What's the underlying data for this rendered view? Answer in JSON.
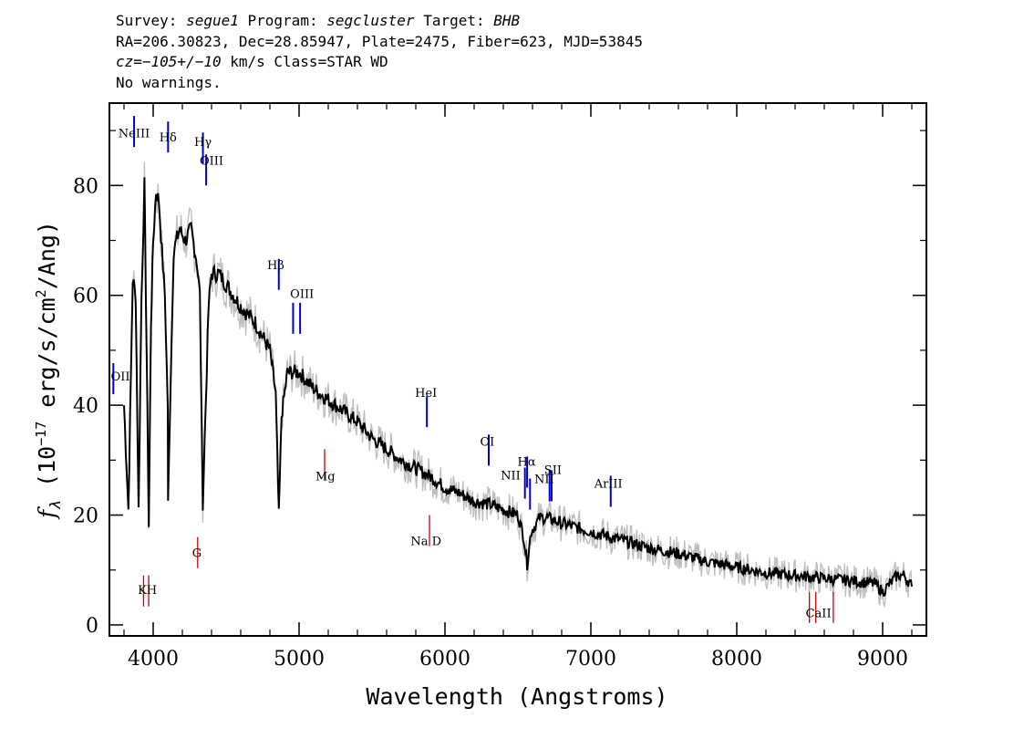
{
  "header": {
    "survey_label": "Survey:",
    "survey": "segue1",
    "program_label": "Program:",
    "program": "segcluster",
    "target_label": "Target:",
    "target": "BHB",
    "line2": "RA=206.30823, Dec=28.85947, Plate=2475, Fiber=623, MJD=53845",
    "cz_label": "cz",
    "cz_value": "=−105+/−10",
    "cz_rest": "km/s Class=STAR WD",
    "line4": "No warnings."
  },
  "chart_data": {
    "type": "line",
    "xlabel": "Wavelength (Angstroms)",
    "ylabel_prefix": "f",
    "ylabel_sub": "λ",
    "ylabel_unit_a": " (10",
    "ylabel_exp": "−17",
    "ylabel_unit_b": " erg/s/cm",
    "ylabel_exp2": "2",
    "ylabel_unit_c": "/Ang)",
    "xlim": [
      3700,
      9300
    ],
    "ylim": [
      -2,
      95
    ],
    "x_ticks": [
      4000,
      5000,
      6000,
      7000,
      8000,
      9000
    ],
    "y_ticks": [
      0,
      20,
      40,
      60,
      80
    ],
    "colors": {
      "spectrum": "#000000",
      "noise": "#bdbdbd",
      "emission": "#0000cc",
      "absorption": "#cc0000"
    },
    "spectrum": [
      [
        3800,
        40
      ],
      [
        3830,
        21
      ],
      [
        3860,
        63
      ],
      [
        3880,
        60
      ],
      [
        3900,
        21
      ],
      [
        3920,
        60
      ],
      [
        3940,
        80
      ],
      [
        3955,
        50
      ],
      [
        3970,
        18
      ],
      [
        3985,
        55
      ],
      [
        4000,
        70
      ],
      [
        4020,
        79
      ],
      [
        4040,
        77
      ],
      [
        4060,
        68
      ],
      [
        4080,
        60
      ],
      [
        4100,
        40
      ],
      [
        4102,
        22
      ],
      [
        4120,
        45
      ],
      [
        4140,
        68
      ],
      [
        4180,
        72
      ],
      [
        4220,
        70
      ],
      [
        4260,
        72
      ],
      [
        4300,
        66
      ],
      [
        4320,
        60
      ],
      [
        4340,
        22
      ],
      [
        4360,
        40
      ],
      [
        4380,
        58
      ],
      [
        4400,
        64
      ],
      [
        4450,
        64
      ],
      [
        4500,
        62
      ],
      [
        4600,
        58
      ],
      [
        4700,
        55
      ],
      [
        4800,
        50
      ],
      [
        4840,
        42
      ],
      [
        4861,
        20
      ],
      [
        4880,
        38
      ],
      [
        4920,
        46
      ],
      [
        5000,
        46
      ],
      [
        5100,
        43
      ],
      [
        5200,
        41
      ],
      [
        5300,
        39
      ],
      [
        5400,
        37
      ],
      [
        5500,
        34
      ],
      [
        5600,
        32
      ],
      [
        5700,
        30
      ],
      [
        5800,
        28.5
      ],
      [
        5900,
        27
      ],
      [
        6000,
        25
      ],
      [
        6100,
        24
      ],
      [
        6200,
        22.5
      ],
      [
        6300,
        22
      ],
      [
        6400,
        21
      ],
      [
        6500,
        20
      ],
      [
        6540,
        16
      ],
      [
        6563,
        11
      ],
      [
        6590,
        17
      ],
      [
        6650,
        19.5
      ],
      [
        6700,
        19.5
      ],
      [
        6800,
        18.5
      ],
      [
        7000,
        17
      ],
      [
        7200,
        15.5
      ],
      [
        7400,
        14
      ],
      [
        7600,
        13
      ],
      [
        7800,
        11.5
      ],
      [
        8000,
        10.5
      ],
      [
        8200,
        9.5
      ],
      [
        8400,
        9
      ],
      [
        8600,
        8.5
      ],
      [
        8800,
        8
      ],
      [
        8950,
        7.5
      ],
      [
        9000,
        6
      ],
      [
        9050,
        7.5
      ],
      [
        9100,
        9
      ],
      [
        9150,
        9
      ],
      [
        9200,
        7
      ]
    ],
    "emission_lines": [
      {
        "label": "OII",
        "wavelength": 3727,
        "y": 42
      },
      {
        "label": "NeIII",
        "wavelength": 3869,
        "y": 87
      },
      {
        "label": "Hδ",
        "wavelength": 4102,
        "y": 86
      },
      {
        "label": "Hγ",
        "wavelength": 4341,
        "y": 84
      },
      {
        "label": "OIII",
        "wavelength": 4363,
        "y": 80
      },
      {
        "label": "Hβ",
        "wavelength": 4861,
        "y": 61
      },
      {
        "label": "OIII",
        "wavelength": 4959,
        "y": 53
      },
      {
        "label": "OIII",
        "wavelength": 5007,
        "y": 53
      },
      {
        "label": "HeI",
        "wavelength": 5876,
        "y": 36
      },
      {
        "label": "OI",
        "wavelength": 6300,
        "y": 29
      },
      {
        "label": "NII",
        "wavelength": 6548,
        "y": 23
      },
      {
        "label": "Hα",
        "wavelength": 6563,
        "y": 25
      },
      {
        "label": "NII",
        "wavelength": 6583,
        "y": 21
      },
      {
        "label": "SII",
        "wavelength": 6717,
        "y": 22.5
      },
      {
        "label": "SII",
        "wavelength": 6731,
        "y": 22.5
      },
      {
        "label": "ArIII",
        "wavelength": 7136,
        "y": 21.5
      }
    ],
    "absorption_lines": [
      {
        "label": "K",
        "wavelength": 3934,
        "y": 9
      },
      {
        "label": "H",
        "wavelength": 3969,
        "y": 9
      },
      {
        "label": "G",
        "wavelength": 4305,
        "y": 16
      },
      {
        "label": "Mg",
        "wavelength": 5175,
        "y": 32
      },
      {
        "label": "Na",
        "wavelength": 5894,
        "y": 20
      },
      {
        "label": "CaII",
        "wavelength": 8498,
        "y": 6
      },
      {
        "label": "CaII",
        "wavelength": 8542,
        "y": 6
      },
      {
        "label": "CaII",
        "wavelength": 8662,
        "y": 6
      }
    ],
    "line_label_text": {
      "OII": "OII",
      "NeIII": "NeIII",
      "Hdelta": "Hδ",
      "Hgamma": "Hγ",
      "OIII_blue": "OIII",
      "Hbeta": "Hβ",
      "OIII_green": "OIII",
      "HeI": "HeI",
      "OI": "OI",
      "NII": "NII",
      "Halpha": "Hα",
      "NII_2": "NII",
      "SII": "SII",
      "ArIII": "ArIII",
      "KH": "KH",
      "G": "G",
      "Mg": "Mg",
      "NaD": "Na  D",
      "CaII": "CaII"
    }
  }
}
